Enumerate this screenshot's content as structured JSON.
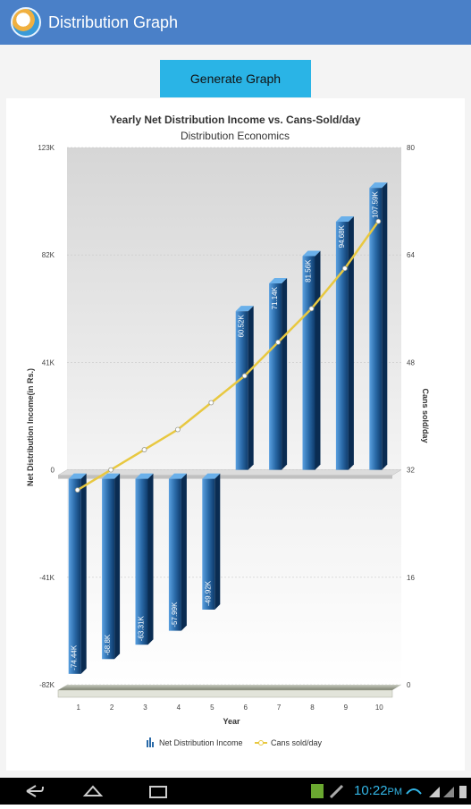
{
  "app": {
    "title": "Distribution Graph",
    "icon": "app-logo-icon"
  },
  "toolbar": {
    "generate_label": "Generate Graph"
  },
  "chart_data": {
    "type": "bar",
    "title": "Yearly Net Distribution Income vs. Cans-Sold/day",
    "subtitle": "Distribution Economics",
    "xlabel": "Year",
    "ylabel": "Net Distribution Income(in Rs.)",
    "y2label": "Cans sold/day",
    "categories": [
      "1",
      "2",
      "3",
      "4",
      "5",
      "6",
      "7",
      "8",
      "9",
      "10"
    ],
    "ylim": [
      -82000,
      123000
    ],
    "y_ticks": [
      "123K",
      "82K",
      "41K",
      "0",
      "-41K",
      "-82K"
    ],
    "y2lim": [
      0,
      80
    ],
    "y2_ticks": [
      "80",
      "64",
      "48",
      "32",
      "16",
      "0"
    ],
    "series": [
      {
        "name": "Net Distribution Income",
        "kind": "bar",
        "color": "#2a6aa8",
        "values": [
          -74440,
          -68800,
          -63310,
          -57990,
          -49920,
          60520,
          71140,
          81560,
          94680,
          107590
        ],
        "labels": [
          "-74.44K",
          "-68.8K",
          "-63.31K",
          "-57.99K",
          "-49.92K",
          "60.52K",
          "71.14K",
          "81.56K",
          "94.68K",
          "107.59K"
        ]
      },
      {
        "name": "Cans sold/day",
        "kind": "line",
        "axis": "right",
        "color": "#e8c840",
        "values": [
          29,
          32,
          35,
          38,
          42,
          46,
          51,
          56,
          62,
          69
        ]
      }
    ],
    "legend_position": "bottom",
    "grid": true
  },
  "status_bar": {
    "time": "10:22",
    "time_suffix": "PM"
  }
}
